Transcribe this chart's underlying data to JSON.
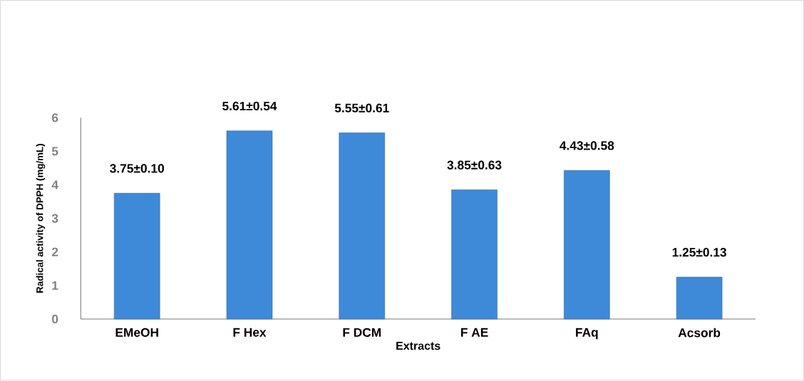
{
  "chart_data": {
    "type": "bar",
    "xlabel": "Extracts",
    "ylabel": "Radical activity of DPPH (mg/mL)",
    "categories": [
      "EMeOH",
      "F Hex",
      "F DCM",
      "F AE",
      "FAq",
      "Acsorb"
    ],
    "values": [
      3.75,
      5.61,
      5.55,
      3.85,
      4.43,
      1.25
    ],
    "value_labels": [
      "3.75±0.10",
      "5.61±0.54",
      "5.55±0.61",
      "3.85±0.63",
      "4.43±0.58",
      "1.25±0.13"
    ],
    "color": "#3f8ad8",
    "ylim": [
      0,
      6
    ],
    "yticks": [
      0,
      1,
      2,
      3,
      4,
      5,
      6
    ]
  }
}
